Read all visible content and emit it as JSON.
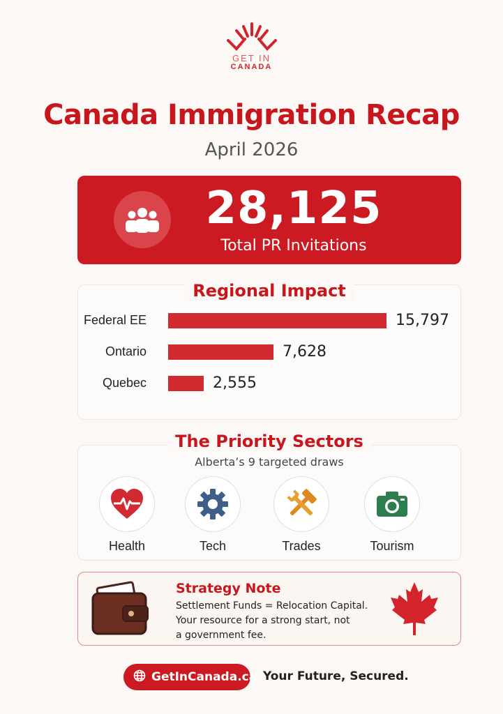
{
  "brand": {
    "logo_line1": "GET IN",
    "logo_line2": "CANADA",
    "color": "#d3242b"
  },
  "header": {
    "title": "Canada Immigration Recap",
    "subtitle": "April 2026"
  },
  "hero": {
    "number": "28,125",
    "label": "Total PR Invitations",
    "icon": "people-group-icon"
  },
  "regional": {
    "title": "Regional Impact",
    "max_value": 15797,
    "rows": [
      {
        "label": "Federal EE",
        "value": 15797,
        "value_text": "15,797"
      },
      {
        "label": "Ontario",
        "value": 7628,
        "value_text": "7,628"
      },
      {
        "label": "Quebec",
        "value": 2555,
        "value_text": "2,555"
      }
    ]
  },
  "sectors": {
    "title": "The Priority Sectors",
    "subtitle": "Alberta’s 9 targeted draws",
    "items": [
      {
        "label": "Health",
        "icon": "heart-pulse-icon"
      },
      {
        "label": "Tech",
        "icon": "gear-icon"
      },
      {
        "label": "Trades",
        "icon": "tools-icon"
      },
      {
        "label": "Tourism",
        "icon": "camera-icon"
      }
    ]
  },
  "note": {
    "title": "Strategy Note",
    "lines": [
      "Settlement Funds = Relocation Capital.",
      "Your resource for a strong start, not",
      "a government fee."
    ]
  },
  "footer": {
    "website": "GetInCanada.ca",
    "tagline": "Your Future, Secured."
  }
}
